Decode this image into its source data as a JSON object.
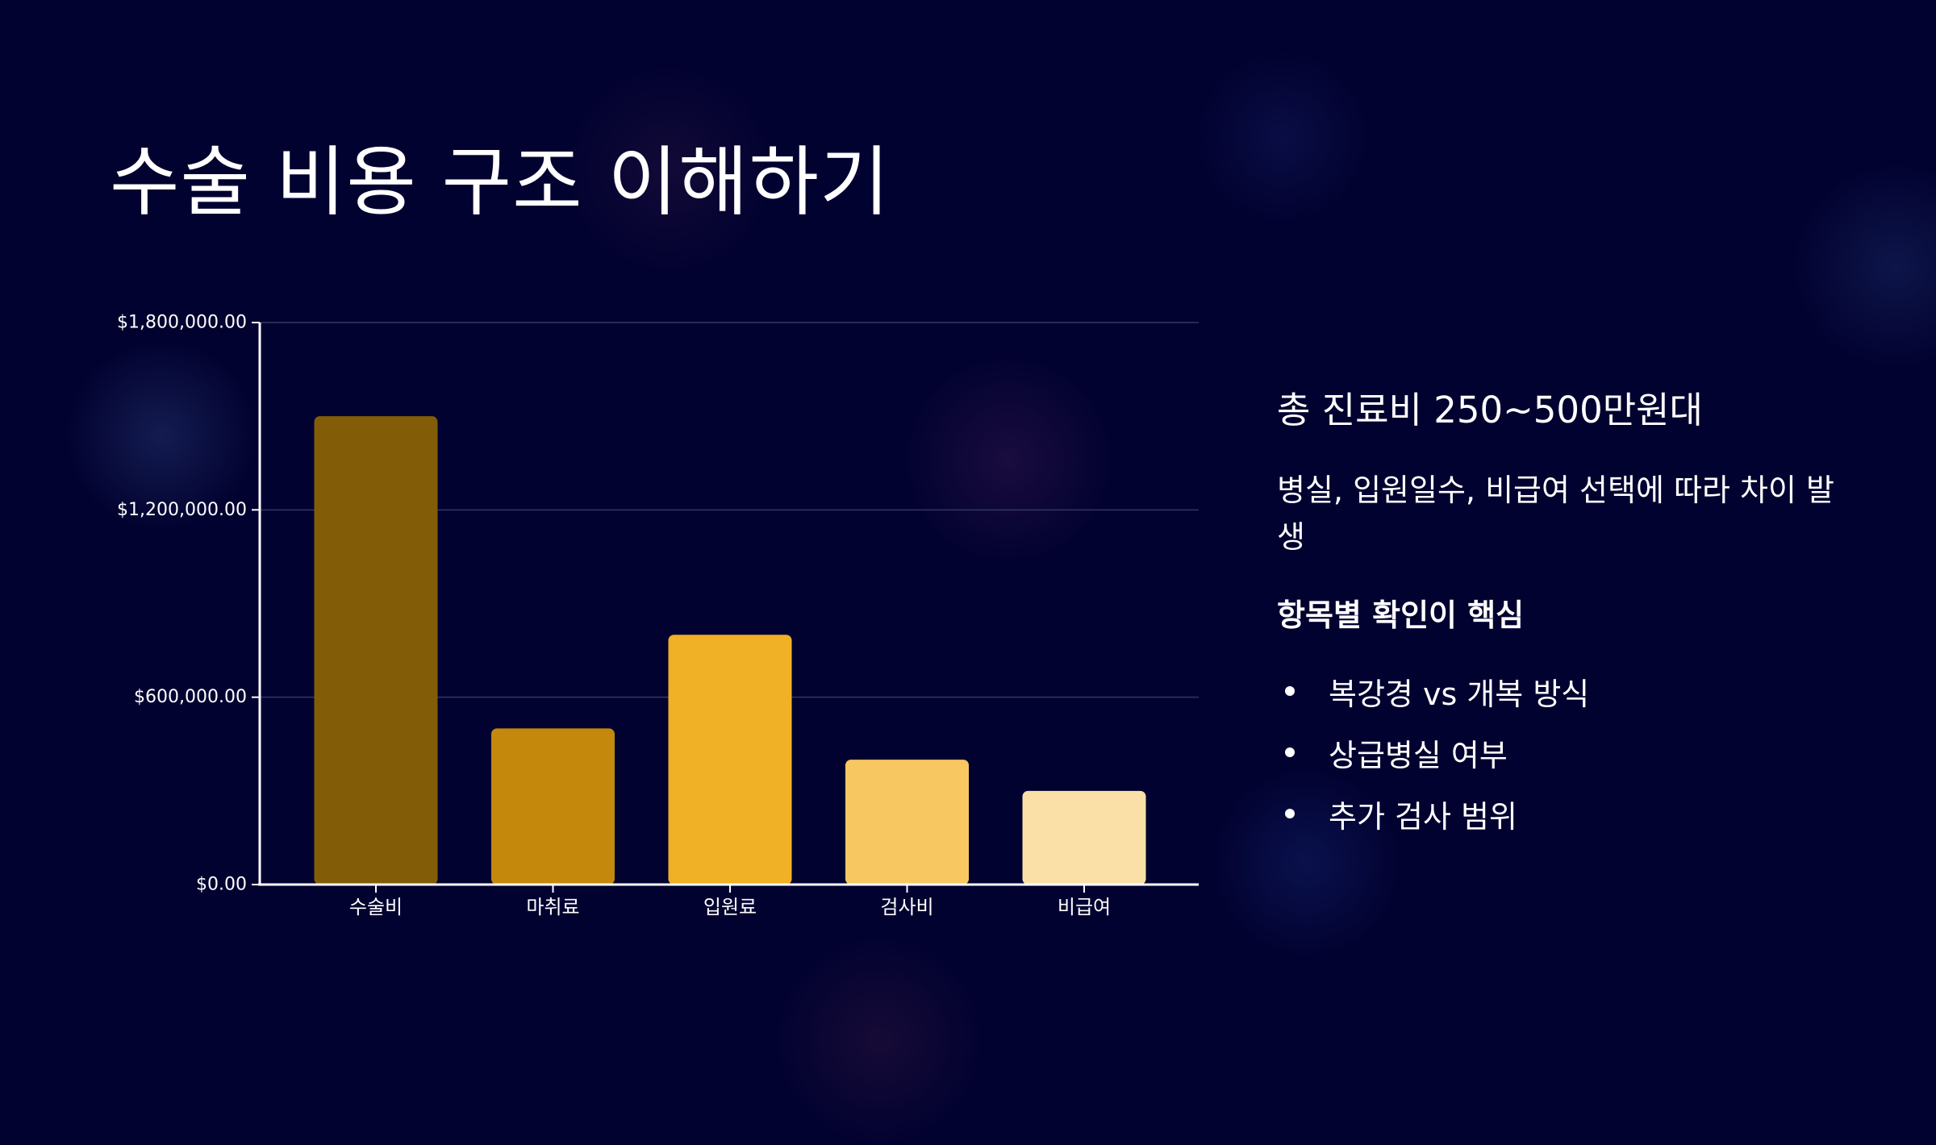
{
  "slide": {
    "title": "수술 비용 구조 이해하기",
    "side": {
      "headline": "총 진료비 250~500만원대",
      "description": "병실, 입원일수, 비급여 선택에 따라 차이 발생",
      "key_point": "항목별 확인이 핵심",
      "bullets": [
        "복강경 vs 개복 방식",
        "상급병실 여부",
        "추가 검사 범위"
      ]
    }
  },
  "colors": {
    "background": "#020230",
    "bars": [
      "#835C07",
      "#C4880C",
      "#F0B126",
      "#F7C862",
      "#FAE0A6"
    ],
    "grid": "#34365e",
    "axis": "#ffffff"
  },
  "chart_data": {
    "type": "bar",
    "categories": [
      "수술비",
      "마취료",
      "입원료",
      "검사비",
      "비급여"
    ],
    "values": [
      1500000,
      500000,
      800000,
      400000,
      300000
    ],
    "ylim": [
      0,
      1800000
    ],
    "yticks": [
      0,
      600000,
      1200000,
      1800000
    ],
    "ytick_labels": [
      "$0.00",
      "$600,000.00",
      "$1,200,000.00",
      "$1,800,000.00"
    ],
    "grid": true,
    "legend": "none"
  }
}
